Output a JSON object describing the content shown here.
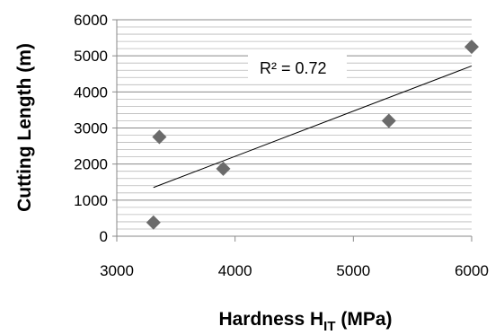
{
  "chart_data": {
    "type": "scatter",
    "title": "",
    "xlabel": "Hardness H",
    "xlabel_subscript": "IT",
    "xlabel_unit": "(MPa)",
    "ylabel": "Cutting Length (m)",
    "xlim": [
      3000,
      6000
    ],
    "ylim": [
      0,
      6000
    ],
    "x_ticks": [
      3000,
      4000,
      5000,
      6000
    ],
    "y_ticks": [
      0,
      1000,
      2000,
      3000,
      4000,
      5000,
      6000
    ],
    "y_minor_step": 200,
    "grid": true,
    "marker": "diamond",
    "marker_color": "#6b6b6b",
    "series": [
      {
        "x": [
          3310,
          3360,
          3900,
          5300,
          6000
        ],
        "y": [
          380,
          2750,
          1870,
          3200,
          5250
        ]
      }
    ],
    "trendline": {
      "x": [
        3310,
        6000
      ],
      "y": [
        1350,
        4720
      ]
    },
    "annotation": "R² = 0.72"
  }
}
